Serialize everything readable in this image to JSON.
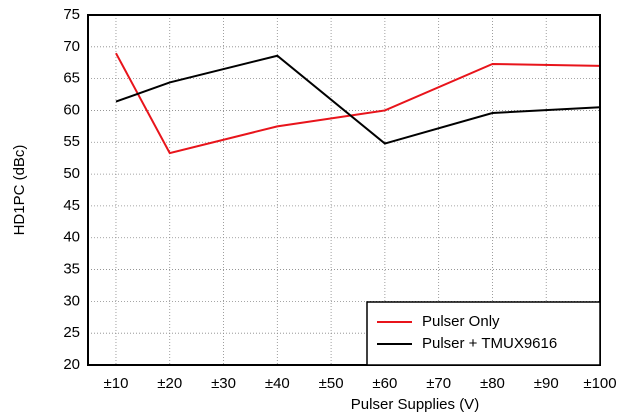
{
  "chart_data": {
    "type": "line",
    "x_label": "Pulser Supplies (V)",
    "y_label": "HD1PC (dBc)",
    "x": [
      10,
      20,
      40,
      60,
      80,
      100
    ],
    "series": [
      {
        "name": "Pulser Only",
        "color": "#e8141b",
        "values": [
          69,
          53.3,
          57.5,
          60,
          67.3,
          67
        ]
      },
      {
        "name": "Pulser + TMUX9616",
        "color": "#000000",
        "values": [
          61.4,
          64.4,
          68.6,
          54.8,
          59.6,
          60.5
        ]
      }
    ],
    "xlim": [
      4.8,
      100
    ],
    "xticks": [
      {
        "value": 10,
        "label": "±10"
      },
      {
        "value": 20,
        "label": "±20"
      },
      {
        "value": 30,
        "label": "±30"
      },
      {
        "value": 40,
        "label": "±40"
      },
      {
        "value": 50,
        "label": "±50"
      },
      {
        "value": 60,
        "label": "±60"
      },
      {
        "value": 70,
        "label": "±70"
      },
      {
        "value": 80,
        "label": "±80"
      },
      {
        "value": 90,
        "label": "±90"
      },
      {
        "value": 100,
        "label": "±100"
      }
    ],
    "ylim": [
      20,
      75
    ],
    "yticks": [
      20,
      25,
      30,
      35,
      40,
      45,
      50,
      55,
      60,
      65,
      70,
      75
    ],
    "grid": true,
    "legend": "lower right"
  }
}
